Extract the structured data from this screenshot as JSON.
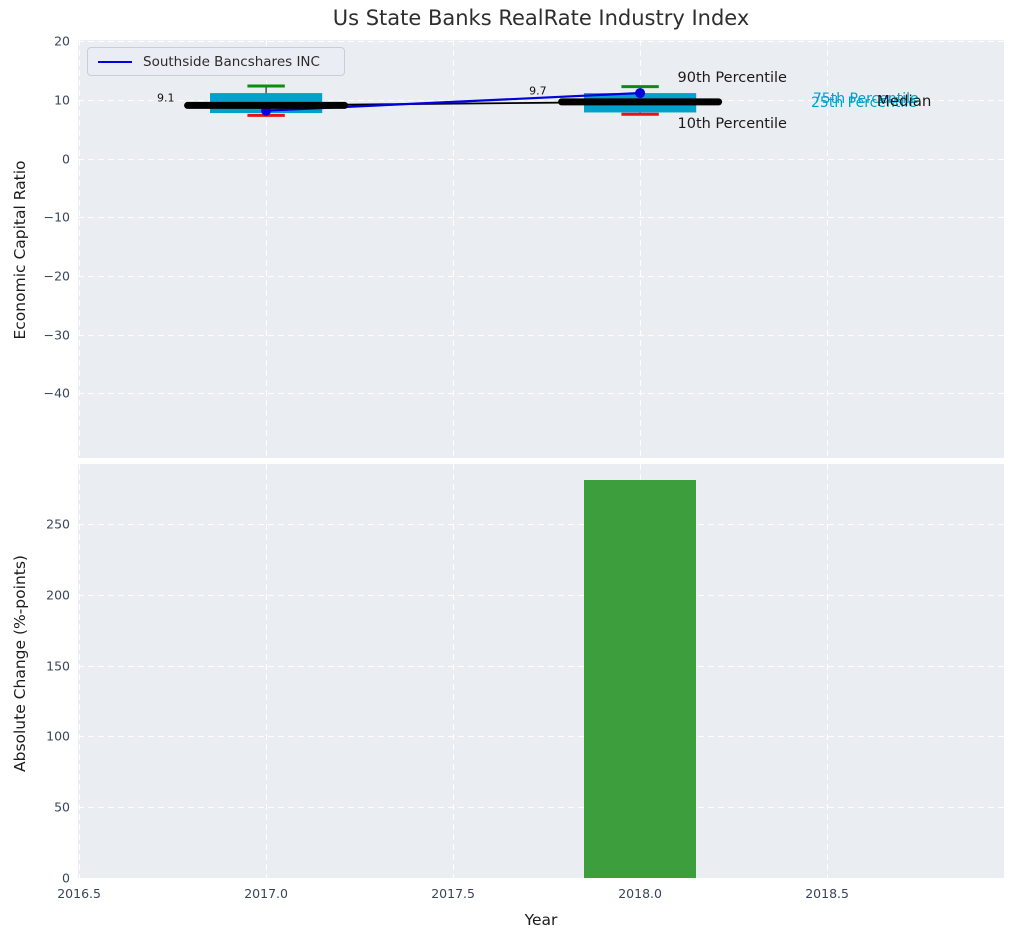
{
  "title": "Us State Banks RealRate Industry Index",
  "legend": {
    "label": "Southside Bancshares INC",
    "line_color": "#0000e0"
  },
  "colors": {
    "figure_bg": "#ffffff",
    "axes_bg": "#eaeef2",
    "grid": "#ffffff",
    "box_fill": "#00a1cc",
    "whisker": "#444444",
    "cap_90th": "#0a8f0a",
    "cap_10th": "#e81414",
    "median": "#000000",
    "series_line": "#0000e0",
    "bar_fill": "#3d9e3e",
    "tick_text": "#3a455a",
    "label_text": "#1c1c1c"
  },
  "chart_data": [
    {
      "type": "boxplot",
      "title": "Us State Banks RealRate Industry Index",
      "ylabel": "Economic Capital Ratio",
      "xlim": [
        2016.497,
        2018.973
      ],
      "ylim": [
        -51,
        20.25
      ],
      "grid": true,
      "legend_position": "upper left",
      "yticks": [
        {
          "v": 20,
          "label": "20"
        },
        {
          "v": 10,
          "label": "10"
        },
        {
          "v": 0,
          "label": "0"
        },
        {
          "v": -10,
          "label": "−10"
        },
        {
          "v": -20,
          "label": "−20"
        },
        {
          "v": -30,
          "label": "−30"
        },
        {
          "v": -40,
          "label": "−40"
        }
      ],
      "xgrid_at": [
        2016.5,
        2017.0,
        2017.5,
        2018.0,
        2018.5
      ],
      "box_width": 0.3,
      "cap_width": 0.1,
      "median_seg_width": 0.42,
      "boxes": [
        {
          "x": 2017,
          "median": 9.1,
          "q1": 7.8,
          "q3": 11.2,
          "p10": 7.4,
          "p90": 12.4
        },
        {
          "x": 2018,
          "median": 9.7,
          "q1": 7.9,
          "q3": 11.2,
          "p10": 7.6,
          "p90": 12.3
        }
      ],
      "median_line": {
        "x": [
          2017,
          2018
        ],
        "y": [
          9.1,
          9.7
        ]
      },
      "series": [
        {
          "name": "Southside Bancshares INC",
          "x": [
            2017,
            2018
          ],
          "y": [
            8.2,
            11.2
          ],
          "color": "#0000e0"
        }
      ],
      "annotations": [
        {
          "text": "9.1",
          "x": 2016.755,
          "y": 10.4,
          "align": "right",
          "color": "#111111",
          "size": 11
        },
        {
          "text": "9.7",
          "x": 2017.75,
          "y": 11.55,
          "align": "right",
          "color": "#111111",
          "size": 11
        },
        {
          "text": "90th Percentile",
          "x": 2018.1,
          "y": 13.8,
          "align": "left",
          "color": "#1a1a1a",
          "size": 14.5
        },
        {
          "text": "10th Percentile",
          "x": 2018.1,
          "y": 5.9,
          "align": "left",
          "color": "#1a1a1a",
          "size": 14.5
        },
        {
          "text": "75th Percentile",
          "x": 2018.462,
          "y": 10.15,
          "align": "left",
          "color": "#00a1cc",
          "size": 14
        },
        {
          "text": "25th Percentile",
          "x": 2018.457,
          "y": 9.55,
          "align": "left",
          "color": "#00a1cc",
          "size": 14
        },
        {
          "text": "Median",
          "x": 2018.633,
          "y": 9.85,
          "align": "left",
          "color": "#1a1a1a",
          "size": 15
        }
      ]
    },
    {
      "type": "bar",
      "ylabel": "Absolute Change (%-points)",
      "xlabel": "Year",
      "xlim": [
        2016.497,
        2018.973
      ],
      "ylim": [
        0,
        292.4
      ],
      "grid": true,
      "bar_width": 0.3,
      "categories": [
        2018
      ],
      "values": [
        281
      ],
      "yticks": [
        {
          "v": 0,
          "label": "0"
        },
        {
          "v": 50,
          "label": "50"
        },
        {
          "v": 100,
          "label": "100"
        },
        {
          "v": 150,
          "label": "150"
        },
        {
          "v": 200,
          "label": "200"
        },
        {
          "v": 250,
          "label": "250"
        }
      ],
      "xticks": [
        {
          "v": 2016.5,
          "label": "2016.5"
        },
        {
          "v": 2017.0,
          "label": "2017.0"
        },
        {
          "v": 2017.5,
          "label": "2017.5"
        },
        {
          "v": 2018.0,
          "label": "2018.0"
        },
        {
          "v": 2018.5,
          "label": "2018.5"
        }
      ]
    }
  ]
}
